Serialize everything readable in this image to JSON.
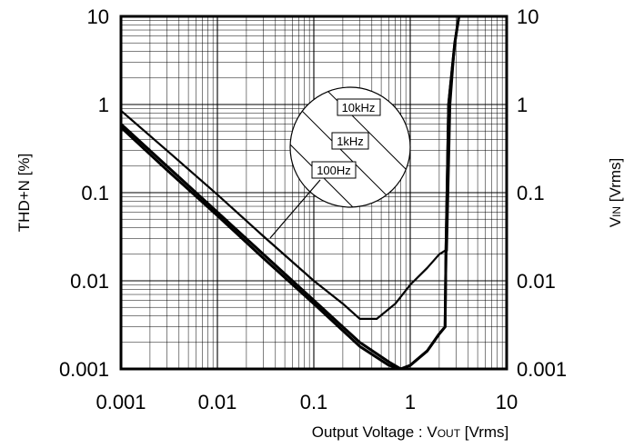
{
  "chart_data": {
    "type": "line",
    "xscale": "log",
    "yscale": "log",
    "xlim": [
      0.001,
      10
    ],
    "ylim": [
      0.001,
      10
    ],
    "x_ticks": [
      "0.001",
      "0.01",
      "0.1",
      "1",
      "10"
    ],
    "y_ticks": [
      "0.001",
      "0.01",
      "0.1",
      "1",
      "10"
    ],
    "y2_ticks": [
      "0.001",
      "0.01",
      "0.1",
      "1",
      "10"
    ],
    "xlabel_main": "Output Voltage : V",
    "xlabel_sub": "OUT",
    "xlabel_unit": " [Vrms]",
    "ylabel": "THD+N [%]",
    "y2label_main": "V",
    "y2label_sub": "IN",
    "y2label_unit": " [Vrms]",
    "grid": true,
    "callout_labels": [
      "10kHz",
      "1kHz",
      "100Hz"
    ],
    "series": [
      {
        "name": "10kHz",
        "x": [
          0.001,
          0.003,
          0.01,
          0.03,
          0.1,
          0.2,
          0.3,
          0.45,
          0.7,
          1.0,
          1.5,
          2.0,
          2.3,
          2.4,
          2.6,
          2.9,
          3.2
        ],
        "y": [
          0.85,
          0.3,
          0.095,
          0.032,
          0.01,
          0.0055,
          0.0037,
          0.0037,
          0.0055,
          0.009,
          0.014,
          0.02,
          0.022,
          0.022,
          1.0,
          5.0,
          10
        ]
      },
      {
        "name": "1kHz",
        "x": [
          0.001,
          0.003,
          0.01,
          0.03,
          0.1,
          0.3,
          0.6,
          0.8,
          1.0,
          1.5,
          2.0,
          2.3,
          2.35,
          2.5,
          2.9,
          3.2
        ],
        "y": [
          0.6,
          0.2,
          0.06,
          0.02,
          0.006,
          0.002,
          0.0012,
          0.001,
          0.0011,
          0.0016,
          0.0025,
          0.003,
          0.022,
          1.0,
          5.0,
          10
        ]
      },
      {
        "name": "100Hz",
        "x": [
          0.001,
          0.003,
          0.01,
          0.03,
          0.1,
          0.3,
          0.6,
          0.8,
          1.0,
          1.5,
          2.0,
          2.3,
          2.35,
          2.5,
          2.9,
          3.2
        ],
        "y": [
          0.55,
          0.18,
          0.055,
          0.018,
          0.0055,
          0.0018,
          0.0011,
          0.001,
          0.0011,
          0.0016,
          0.0025,
          0.003,
          0.022,
          1.0,
          5.0,
          10
        ]
      }
    ]
  }
}
